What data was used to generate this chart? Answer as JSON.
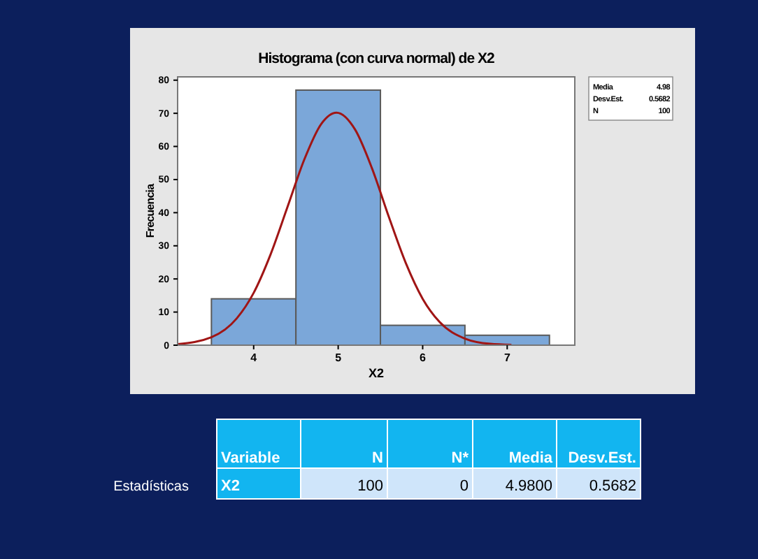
{
  "chart_data": {
    "type": "histogram",
    "title": "Histograma (con curva normal) de X2",
    "xlabel": "X2",
    "ylabel": "Frecuencia",
    "bins": [
      3.5,
      4.5,
      5.5,
      6.5,
      7.5
    ],
    "values": [
      14,
      77,
      6,
      3
    ],
    "color": "#7ba7d9",
    "series": [
      {
        "type": "line",
        "color": "#a01515",
        "x": [
          3.1,
          3.5,
          3.8,
          4.0,
          4.2,
          4.4,
          4.6,
          4.8,
          4.98,
          5.2,
          5.4,
          5.6,
          5.8,
          6.0,
          6.2,
          6.5,
          6.8,
          7.05
        ],
        "values": [
          0.3,
          2.4,
          8.1,
          15.8,
          27.4,
          41.7,
          56.1,
          66.8,
          70.2,
          65.1,
          53.4,
          38.7,
          24.8,
          14.0,
          7.0,
          2.0,
          0.4,
          0.1
        ]
      }
    ],
    "xlim": [
      3.1,
      7.8
    ],
    "xticks": [
      4,
      5,
      6,
      7
    ],
    "ylim": [
      0,
      81
    ],
    "yticks": [
      0,
      10,
      20,
      30,
      40,
      50,
      60,
      70,
      80
    ],
    "grid": false,
    "annotations": [
      "Media",
      "4.98",
      "Desv.Est.",
      "0.5682",
      "N",
      "100",
      "Estadísticas",
      "Variable",
      "N",
      "N*",
      "Media",
      "Desv.Est.",
      "X2",
      "100",
      "0",
      "4.9800",
      "0.5682"
    ]
  }
}
